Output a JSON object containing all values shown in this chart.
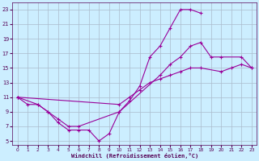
{
  "background_color": "#cceeff",
  "grid_color": "#aabbcc",
  "line_color": "#990099",
  "xlabel": "Windchill (Refroidissement éolien,°C)",
  "xlim": [
    -0.5,
    23.5
  ],
  "ylim": [
    4.5,
    24
  ],
  "xticks": [
    0,
    1,
    2,
    3,
    4,
    5,
    6,
    7,
    8,
    9,
    10,
    11,
    12,
    13,
    14,
    15,
    16,
    17,
    18,
    19,
    20,
    21,
    22,
    23
  ],
  "yticks": [
    5,
    7,
    9,
    11,
    13,
    15,
    17,
    19,
    21,
    23
  ],
  "line1": {
    "x": [
      0,
      1,
      2,
      3,
      4,
      5,
      6,
      7,
      8,
      9,
      10,
      11,
      12,
      13,
      14,
      15,
      16,
      17,
      18
    ],
    "y": [
      11,
      10,
      10,
      9,
      7.5,
      6.5,
      6.5,
      6.5,
      5,
      6,
      9,
      10.5,
      12.5,
      16.5,
      18,
      20.5,
      23,
      23,
      22.5
    ]
  },
  "line2": {
    "x": [
      0,
      2,
      3,
      4,
      5,
      6,
      10,
      14,
      15,
      16,
      17,
      18,
      19,
      20,
      22,
      23
    ],
    "y": [
      11,
      10,
      9,
      8,
      7,
      7,
      9,
      14,
      15.5,
      16.5,
      18,
      18.5,
      16.5,
      16.5,
      16.5,
      15
    ]
  },
  "line3": {
    "x": [
      0,
      10,
      11,
      12,
      13,
      14,
      15,
      16,
      17,
      18,
      20,
      21,
      22,
      23
    ],
    "y": [
      11,
      10,
      11,
      12,
      13,
      13.5,
      14,
      14.5,
      15,
      15,
      14.5,
      15,
      15.5,
      15
    ]
  }
}
